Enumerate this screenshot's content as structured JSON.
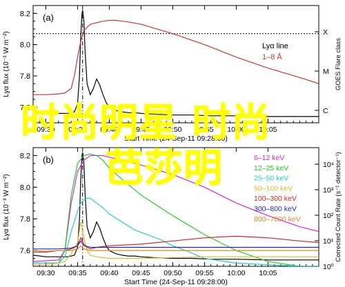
{
  "overlay": {
    "line1": "时尚明星 时尚",
    "line2": "芭莎明"
  },
  "chart_data": [
    {
      "type": "line",
      "panel_label": "(a)",
      "xlabel": "Start Time (24-Sep-11 09:28:00)",
      "x_ticks": [
        "09:30",
        "09:35",
        "09:40",
        "09:45",
        "09:50",
        "09:55",
        "10:00",
        "10:05"
      ],
      "x_range_min": [
        28,
        73
      ],
      "ylabel": "Lyα flux (10⁻³ W m⁻²)",
      "ylim": [
        7.5,
        8.25
      ],
      "y_ticks": [
        7.6,
        7.8,
        8.0,
        8.2
      ],
      "right_ylabel": "GOES Flare class",
      "right_ticks": [
        "X",
        "M",
        "C"
      ],
      "threshold_line": 8.07,
      "flare_peak_time": 35.8,
      "legend": [
        {
          "label": "Lyα line",
          "color": "#000000"
        },
        {
          "label": "1–8 Å",
          "color": "#cc3333"
        }
      ],
      "series": [
        {
          "name": "Lyα line",
          "color": "#000000",
          "x": [
            28,
            30,
            32,
            33.5,
            34.5,
            35.0,
            35.3,
            35.5,
            35.7,
            35.8,
            36.0,
            36.2,
            36.5,
            37,
            37.5,
            38,
            38.5,
            39,
            39.5,
            40,
            41,
            42,
            43,
            44,
            45,
            47,
            50,
            53,
            56,
            60,
            65,
            70,
            73
          ],
          "y": [
            7.57,
            7.56,
            7.56,
            7.56,
            7.57,
            7.62,
            7.8,
            8.05,
            8.2,
            8.22,
            8.15,
            7.95,
            7.75,
            7.68,
            7.72,
            7.78,
            7.74,
            7.68,
            7.63,
            7.6,
            7.58,
            7.57,
            7.565,
            7.565,
            7.56,
            7.555,
            7.55,
            7.55,
            7.545,
            7.545,
            7.54,
            7.54,
            7.54
          ]
        },
        {
          "name": "1–8 Å",
          "color": "#cc3333",
          "x": [
            28,
            30,
            32,
            33,
            34,
            34.5,
            35,
            35.5,
            36,
            37,
            38,
            39,
            40,
            41,
            42,
            43,
            45,
            50,
            55,
            60,
            65,
            70,
            73
          ],
          "y": [
            7.68,
            7.68,
            7.685,
            7.69,
            7.72,
            7.8,
            7.92,
            8.02,
            8.09,
            8.13,
            8.14,
            8.15,
            8.155,
            8.155,
            8.15,
            8.145,
            8.13,
            8.07,
            8.0,
            7.92,
            7.85,
            7.79,
            7.75
          ]
        }
      ]
    },
    {
      "type": "line",
      "panel_label": "(b)",
      "xlabel": "Start Time (24-Sep-11 09:28:00)",
      "x_ticks": [
        "09:30",
        "09:35",
        "09:40",
        "09:45",
        "09:50",
        "09:55",
        "10:00",
        "10:05"
      ],
      "x_range_min": [
        28,
        73
      ],
      "ylabel": "Lyα flux (10⁻³ W m⁻²)",
      "ylim": [
        7.5,
        8.25
      ],
      "y_ticks": [
        7.6,
        7.8,
        8.0,
        8.2
      ],
      "right_ylabel": "Corrected Count Rate (s⁻¹ detector⁻¹)",
      "right_ticks": [
        "10⁴",
        "10³",
        "10²",
        "10¹",
        "10⁰"
      ],
      "flare_peak_time": 35.8,
      "legend": [
        {
          "label": "6–12 keV",
          "color": "#dd22dd"
        },
        {
          "label": "12–25 keV",
          "color": "#22cc22"
        },
        {
          "label": "25–50 keV",
          "color": "#22cccc"
        },
        {
          "label": "50–100 keV",
          "color": "#ddbb22"
        },
        {
          "label": "100–300 keV",
          "color": "#dd2222"
        },
        {
          "label": "300–800 keV",
          "color": "#2222cc"
        },
        {
          "label": "800–7000 keV",
          "color": "#dd8822"
        }
      ],
      "series": [
        {
          "name": "Lyα line",
          "color": "#000000",
          "x": [
            28,
            30,
            32,
            33.5,
            34.5,
            35.0,
            35.3,
            35.5,
            35.7,
            35.8,
            36.0,
            36.2,
            36.5,
            37,
            37.5,
            38,
            38.5,
            39,
            39.5,
            40,
            41,
            42,
            43,
            44,
            45,
            47,
            50,
            53,
            56,
            60,
            65,
            70,
            73
          ],
          "y": [
            7.57,
            7.56,
            7.56,
            7.56,
            7.57,
            7.62,
            7.8,
            8.05,
            8.2,
            8.22,
            8.15,
            7.95,
            7.75,
            7.68,
            7.72,
            7.78,
            7.74,
            7.68,
            7.63,
            7.6,
            7.58,
            7.57,
            7.565,
            7.565,
            7.56,
            7.555,
            7.55,
            7.55,
            7.545,
            7.545,
            7.54,
            7.54,
            7.54
          ]
        },
        {
          "name": "6–12 keV",
          "color": "#dd22dd",
          "x": [
            28,
            32,
            33,
            34,
            35,
            36,
            37,
            38,
            39,
            40,
            42,
            45,
            50,
            55,
            60,
            65,
            70,
            73
          ],
          "y": [
            7.53,
            7.54,
            7.6,
            7.9,
            8.1,
            8.17,
            8.2,
            8.2,
            8.2,
            8.19,
            8.17,
            8.14,
            8.08,
            8.0,
            7.9,
            7.82,
            7.75,
            7.72
          ]
        },
        {
          "name": "12–25 keV",
          "color": "#22cc22",
          "x": [
            28,
            32,
            33,
            34,
            35,
            36,
            37,
            38,
            39,
            40,
            42,
            45,
            50,
            55,
            60,
            65,
            70,
            73
          ],
          "y": [
            7.52,
            7.52,
            7.6,
            7.95,
            8.15,
            8.2,
            8.21,
            8.2,
            8.17,
            8.12,
            8.05,
            7.95,
            7.82,
            7.7,
            7.6,
            7.53,
            7.5,
            7.5
          ]
        },
        {
          "name": "25–50 keV",
          "color": "#22cccc",
          "x": [
            28,
            32,
            33,
            34,
            35,
            35.5,
            36,
            36.5,
            37,
            38,
            39,
            40,
            42,
            44,
            46,
            48,
            50,
            52,
            55,
            60,
            65,
            70,
            73
          ],
          "y": [
            7.52,
            7.52,
            7.56,
            7.72,
            7.85,
            7.9,
            7.92,
            7.93,
            7.93,
            7.9,
            7.87,
            7.83,
            7.78,
            7.73,
            7.7,
            7.67,
            7.63,
            7.6,
            7.55,
            7.52,
            7.51,
            7.5,
            7.5
          ]
        },
        {
          "name": "50–100 keV",
          "color": "#ddbb22",
          "x": [
            28,
            30,
            32,
            33,
            34,
            35,
            35.5,
            36,
            36.5,
            37,
            38,
            40,
            45,
            50,
            55,
            60,
            65,
            70,
            73
          ],
          "y": [
            7.51,
            7.51,
            7.52,
            7.53,
            7.58,
            7.65,
            7.78,
            7.68,
            7.6,
            7.57,
            7.56,
            7.55,
            7.55,
            7.555,
            7.56,
            7.56,
            7.56,
            7.56,
            7.56
          ]
        },
        {
          "name": "100–300 keV",
          "color": "#dd2222",
          "x": [
            28,
            30,
            32,
            33,
            34,
            35,
            35.5,
            36,
            36.5,
            37,
            38,
            40,
            45,
            50,
            55,
            60,
            65,
            70,
            73
          ],
          "y": [
            7.59,
            7.59,
            7.6,
            7.6,
            7.61,
            7.63,
            7.68,
            7.64,
            7.62,
            7.61,
            7.62,
            7.63,
            7.64,
            7.66,
            7.68,
            7.69,
            7.68,
            7.66,
            7.65
          ]
        },
        {
          "name": "300–800 keV",
          "color": "#2222cc",
          "x": [
            28,
            30,
            32,
            34,
            35,
            35.5,
            36,
            37,
            38,
            40,
            45,
            50,
            55,
            60,
            65,
            70,
            73
          ],
          "y": [
            7.61,
            7.61,
            7.61,
            7.615,
            7.63,
            7.66,
            7.63,
            7.62,
            7.62,
            7.62,
            7.62,
            7.62,
            7.62,
            7.62,
            7.62,
            7.62,
            7.62
          ]
        },
        {
          "name": "800–7000 keV",
          "color": "#dd8822",
          "x": [
            28,
            30,
            32,
            34,
            35,
            35.5,
            36,
            37,
            38,
            40,
            45,
            50,
            55,
            60,
            65,
            70,
            73
          ],
          "y": [
            7.6,
            7.595,
            7.6,
            7.6,
            7.61,
            7.63,
            7.61,
            7.6,
            7.6,
            7.6,
            7.6,
            7.6,
            7.6,
            7.6,
            7.6,
            7.6,
            7.6
          ]
        }
      ]
    }
  ]
}
